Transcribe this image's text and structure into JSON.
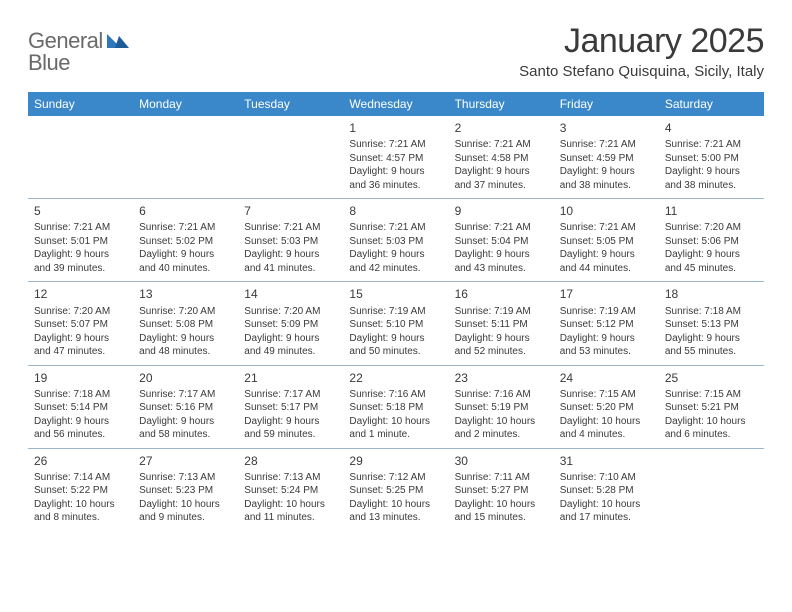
{
  "brand": {
    "word1": "General",
    "word2": "Blue",
    "mark_color": "#2f77bb",
    "text_color": "#6a6a6a"
  },
  "title": "January 2025",
  "location": "Santo Stefano Quisquina, Sicily, Italy",
  "colors": {
    "header_bar": "#3a88c9",
    "rule": "#9cb7cc",
    "text": "#3a3a3a",
    "bg": "#ffffff"
  },
  "days_of_week": [
    "Sunday",
    "Monday",
    "Tuesday",
    "Wednesday",
    "Thursday",
    "Friday",
    "Saturday"
  ],
  "weeks": [
    [
      {
        "n": "",
        "empty": true,
        "lines": [
          "",
          "",
          "",
          ""
        ]
      },
      {
        "n": "",
        "empty": true,
        "lines": [
          "",
          "",
          "",
          ""
        ]
      },
      {
        "n": "",
        "empty": true,
        "lines": [
          "",
          "",
          "",
          ""
        ]
      },
      {
        "n": "1",
        "lines": [
          "Sunrise: 7:21 AM",
          "Sunset: 4:57 PM",
          "Daylight: 9 hours",
          "and 36 minutes."
        ]
      },
      {
        "n": "2",
        "lines": [
          "Sunrise: 7:21 AM",
          "Sunset: 4:58 PM",
          "Daylight: 9 hours",
          "and 37 minutes."
        ]
      },
      {
        "n": "3",
        "lines": [
          "Sunrise: 7:21 AM",
          "Sunset: 4:59 PM",
          "Daylight: 9 hours",
          "and 38 minutes."
        ]
      },
      {
        "n": "4",
        "lines": [
          "Sunrise: 7:21 AM",
          "Sunset: 5:00 PM",
          "Daylight: 9 hours",
          "and 38 minutes."
        ]
      }
    ],
    [
      {
        "n": "5",
        "lines": [
          "Sunrise: 7:21 AM",
          "Sunset: 5:01 PM",
          "Daylight: 9 hours",
          "and 39 minutes."
        ]
      },
      {
        "n": "6",
        "lines": [
          "Sunrise: 7:21 AM",
          "Sunset: 5:02 PM",
          "Daylight: 9 hours",
          "and 40 minutes."
        ]
      },
      {
        "n": "7",
        "lines": [
          "Sunrise: 7:21 AM",
          "Sunset: 5:03 PM",
          "Daylight: 9 hours",
          "and 41 minutes."
        ]
      },
      {
        "n": "8",
        "lines": [
          "Sunrise: 7:21 AM",
          "Sunset: 5:03 PM",
          "Daylight: 9 hours",
          "and 42 minutes."
        ]
      },
      {
        "n": "9",
        "lines": [
          "Sunrise: 7:21 AM",
          "Sunset: 5:04 PM",
          "Daylight: 9 hours",
          "and 43 minutes."
        ]
      },
      {
        "n": "10",
        "lines": [
          "Sunrise: 7:21 AM",
          "Sunset: 5:05 PM",
          "Daylight: 9 hours",
          "and 44 minutes."
        ]
      },
      {
        "n": "11",
        "lines": [
          "Sunrise: 7:20 AM",
          "Sunset: 5:06 PM",
          "Daylight: 9 hours",
          "and 45 minutes."
        ]
      }
    ],
    [
      {
        "n": "12",
        "lines": [
          "Sunrise: 7:20 AM",
          "Sunset: 5:07 PM",
          "Daylight: 9 hours",
          "and 47 minutes."
        ]
      },
      {
        "n": "13",
        "lines": [
          "Sunrise: 7:20 AM",
          "Sunset: 5:08 PM",
          "Daylight: 9 hours",
          "and 48 minutes."
        ]
      },
      {
        "n": "14",
        "lines": [
          "Sunrise: 7:20 AM",
          "Sunset: 5:09 PM",
          "Daylight: 9 hours",
          "and 49 minutes."
        ]
      },
      {
        "n": "15",
        "lines": [
          "Sunrise: 7:19 AM",
          "Sunset: 5:10 PM",
          "Daylight: 9 hours",
          "and 50 minutes."
        ]
      },
      {
        "n": "16",
        "lines": [
          "Sunrise: 7:19 AM",
          "Sunset: 5:11 PM",
          "Daylight: 9 hours",
          "and 52 minutes."
        ]
      },
      {
        "n": "17",
        "lines": [
          "Sunrise: 7:19 AM",
          "Sunset: 5:12 PM",
          "Daylight: 9 hours",
          "and 53 minutes."
        ]
      },
      {
        "n": "18",
        "lines": [
          "Sunrise: 7:18 AM",
          "Sunset: 5:13 PM",
          "Daylight: 9 hours",
          "and 55 minutes."
        ]
      }
    ],
    [
      {
        "n": "19",
        "lines": [
          "Sunrise: 7:18 AM",
          "Sunset: 5:14 PM",
          "Daylight: 9 hours",
          "and 56 minutes."
        ]
      },
      {
        "n": "20",
        "lines": [
          "Sunrise: 7:17 AM",
          "Sunset: 5:16 PM",
          "Daylight: 9 hours",
          "and 58 minutes."
        ]
      },
      {
        "n": "21",
        "lines": [
          "Sunrise: 7:17 AM",
          "Sunset: 5:17 PM",
          "Daylight: 9 hours",
          "and 59 minutes."
        ]
      },
      {
        "n": "22",
        "lines": [
          "Sunrise: 7:16 AM",
          "Sunset: 5:18 PM",
          "Daylight: 10 hours",
          "and 1 minute."
        ]
      },
      {
        "n": "23",
        "lines": [
          "Sunrise: 7:16 AM",
          "Sunset: 5:19 PM",
          "Daylight: 10 hours",
          "and 2 minutes."
        ]
      },
      {
        "n": "24",
        "lines": [
          "Sunrise: 7:15 AM",
          "Sunset: 5:20 PM",
          "Daylight: 10 hours",
          "and 4 minutes."
        ]
      },
      {
        "n": "25",
        "lines": [
          "Sunrise: 7:15 AM",
          "Sunset: 5:21 PM",
          "Daylight: 10 hours",
          "and 6 minutes."
        ]
      }
    ],
    [
      {
        "n": "26",
        "lines": [
          "Sunrise: 7:14 AM",
          "Sunset: 5:22 PM",
          "Daylight: 10 hours",
          "and 8 minutes."
        ]
      },
      {
        "n": "27",
        "lines": [
          "Sunrise: 7:13 AM",
          "Sunset: 5:23 PM",
          "Daylight: 10 hours",
          "and 9 minutes."
        ]
      },
      {
        "n": "28",
        "lines": [
          "Sunrise: 7:13 AM",
          "Sunset: 5:24 PM",
          "Daylight: 10 hours",
          "and 11 minutes."
        ]
      },
      {
        "n": "29",
        "lines": [
          "Sunrise: 7:12 AM",
          "Sunset: 5:25 PM",
          "Daylight: 10 hours",
          "and 13 minutes."
        ]
      },
      {
        "n": "30",
        "lines": [
          "Sunrise: 7:11 AM",
          "Sunset: 5:27 PM",
          "Daylight: 10 hours",
          "and 15 minutes."
        ]
      },
      {
        "n": "31",
        "lines": [
          "Sunrise: 7:10 AM",
          "Sunset: 5:28 PM",
          "Daylight: 10 hours",
          "and 17 minutes."
        ]
      },
      {
        "n": "",
        "empty": true,
        "lines": [
          "",
          "",
          "",
          ""
        ]
      }
    ]
  ]
}
